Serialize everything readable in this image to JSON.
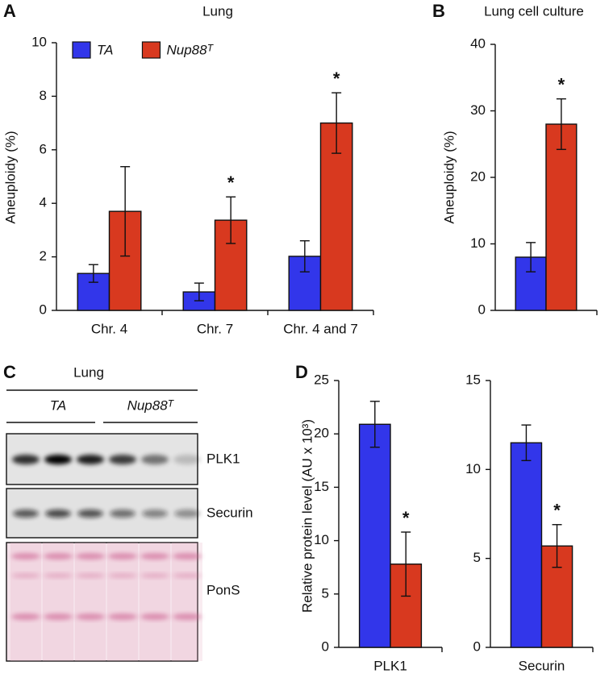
{
  "chart_data": [
    {
      "type": "bar",
      "panel": "A",
      "title": "Lung",
      "ylabel": "Aneuploidy (%)",
      "categories": [
        "Chr. 4",
        "Chr. 7",
        "Chr. 4 and 7"
      ],
      "series": [
        {
          "name": "TA",
          "color": "#3236ea",
          "values": [
            1.38,
            0.69,
            2.02
          ],
          "errors": [
            0.33,
            0.33,
            0.58
          ],
          "significance": [
            null,
            null,
            null
          ]
        },
        {
          "name": "Nup88ᵀ",
          "color": "#d8391f",
          "values": [
            3.7,
            3.37,
            7.0
          ],
          "errors": [
            1.67,
            0.87,
            1.13
          ],
          "significance": [
            null,
            "*",
            "*"
          ]
        }
      ],
      "ylim": [
        0,
        10
      ],
      "yticks": [
        0,
        2,
        4,
        6,
        8,
        10
      ],
      "legend": "upper left"
    },
    {
      "type": "bar",
      "panel": "B",
      "title": "Lung cell culture",
      "ylabel": "Aneuploidy (%)",
      "categories": [
        null
      ],
      "series": [
        {
          "color": "#3236ea",
          "values": [
            8.0
          ],
          "errors": [
            2.2
          ],
          "significance": [
            null
          ]
        },
        {
          "color": "#d8391f",
          "values": [
            28.0
          ],
          "errors": [
            3.8
          ],
          "significance": [
            "*"
          ]
        }
      ],
      "ylim": [
        0,
        40
      ],
      "yticks": [
        0,
        10,
        20,
        30,
        40
      ]
    },
    {
      "type": "bar",
      "panel": "D",
      "ylabel": "Relative protein level (AU x 10³)",
      "categories": [
        "PLK1"
      ],
      "series": [
        {
          "color": "#3236ea",
          "values": [
            20.9
          ],
          "errors": [
            2.15
          ],
          "significance": [
            null
          ]
        },
        {
          "color": "#d8391f",
          "values": [
            7.8
          ],
          "errors": [
            3.0
          ],
          "significance": [
            "*"
          ]
        }
      ],
      "ylim": [
        0,
        25
      ],
      "yticks": [
        0,
        5,
        10,
        15,
        20,
        25
      ]
    },
    {
      "type": "bar",
      "categories": [
        "Securin"
      ],
      "series": [
        {
          "color": "#3236ea",
          "values": [
            11.5
          ],
          "errors": [
            1.0
          ],
          "significance": [
            null
          ]
        },
        {
          "color": "#d8391f",
          "values": [
            5.7
          ],
          "errors": [
            1.2
          ],
          "significance": [
            "*"
          ]
        }
      ],
      "ylim": [
        0,
        15
      ],
      "yticks": [
        0,
        5,
        10,
        15
      ]
    }
  ],
  "panel_c": {
    "panel": "C",
    "title": "Lung",
    "groups": [
      "TA",
      "Nup88ᵀ"
    ],
    "bands": [
      "PLK1",
      "Securin",
      "PonS"
    ]
  }
}
